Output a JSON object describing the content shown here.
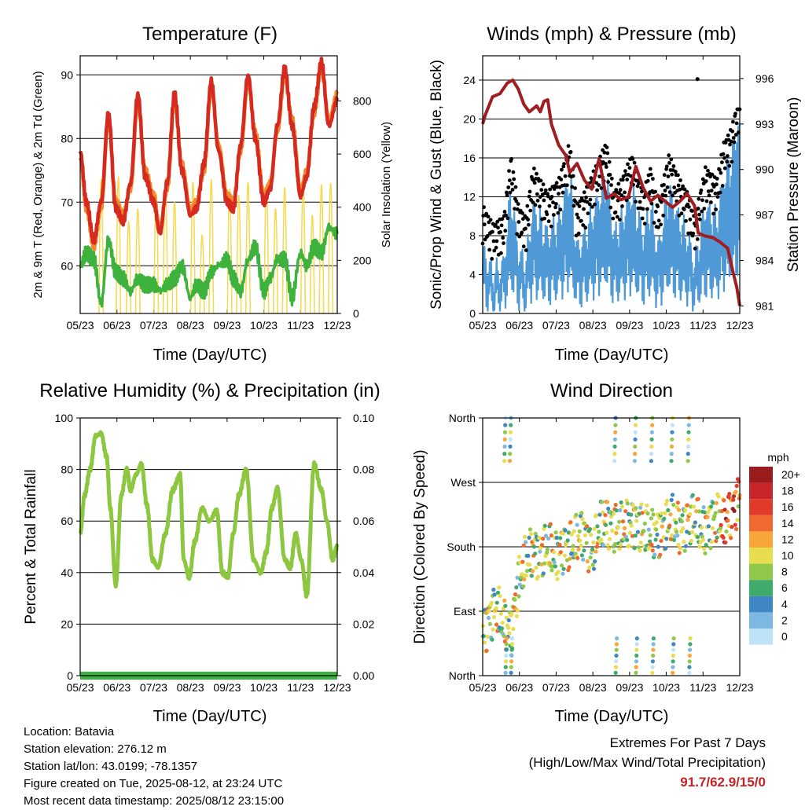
{
  "info": {
    "location": "Location: Batavia",
    "elevation": "Station elevation: 276.12 m",
    "latlon": "Station lat/lon: 43.0199; -78.1357",
    "created": "Figure created on Tue, 2025-08-12, at 23:24 UTC",
    "recent": "Most recent data timestamp: 2025/08/12 23:15:00"
  },
  "extremes": {
    "line1": "Extremes For Past 7 Days",
    "line2": "(High/Low/Max Wind/Total Precipitation)",
    "value": "91.7/62.9/15/0"
  },
  "chart_data": [
    {
      "type": "line",
      "title": "Temperature (F)",
      "xlabel": "Time (Day/UTC)",
      "ylabel": "2m & 9m T (Red, Orange) & 2m Td (Green)",
      "ylabel_right": "Solar Insolation (Yellow)",
      "x_ticks": [
        "05/23",
        "06/23",
        "07/23",
        "08/23",
        "09/23",
        "10/23",
        "11/23",
        "12/23"
      ],
      "y_ticks": [
        60,
        70,
        80,
        90
      ],
      "ylim": [
        52.5,
        93
      ],
      "y2_ticks": [
        0,
        200,
        400,
        600,
        800
      ],
      "y2lim": [
        0,
        970
      ],
      "colors": {
        "t2m": "#d62a20",
        "t9m": "#f08a30",
        "td": "#3db33d",
        "solar": "#f5d94e"
      },
      "series": [
        {
          "key": "t2m",
          "x": [
            5.23,
            5.4,
            5.6,
            5.8,
            6.0,
            6.2,
            6.4,
            6.6,
            6.8,
            7.0,
            7.23,
            7.4,
            7.6,
            7.8,
            8.0,
            8.23,
            8.4,
            8.6,
            8.8,
            9.0,
            9.23,
            9.4,
            9.6,
            9.8,
            10.0,
            10.23,
            10.4,
            10.6,
            10.8,
            11.0,
            11.23,
            11.4,
            11.6,
            11.8,
            12.0,
            12.23
          ],
          "y": [
            78,
            70,
            64,
            70,
            84,
            69,
            67,
            73,
            87,
            74,
            70,
            65,
            73,
            87,
            75,
            68,
            69,
            76,
            89,
            78,
            70,
            69,
            79,
            90,
            80,
            70,
            72,
            82,
            91,
            82,
            71,
            74,
            85,
            92,
            82,
            86
          ]
        },
        {
          "key": "t9m",
          "x": [
            5.23,
            5.4,
            5.6,
            5.8,
            6.0,
            6.2,
            6.4,
            6.6,
            6.8,
            7.0,
            7.23,
            7.4,
            7.6,
            7.8,
            8.0,
            8.23,
            8.4,
            8.6,
            8.8,
            9.0,
            9.23,
            9.4,
            9.6,
            9.8,
            10.0,
            10.23,
            10.4,
            10.6,
            10.8,
            11.0,
            11.23,
            11.4,
            11.6,
            11.8,
            12.0,
            12.23
          ],
          "y": [
            77,
            69,
            63,
            69,
            83,
            70,
            68,
            72,
            86,
            75,
            71,
            66,
            72,
            86,
            76,
            69,
            70,
            75,
            88,
            79,
            71,
            70,
            78,
            89,
            81,
            71,
            73,
            81,
            90,
            83,
            72,
            75,
            84,
            91,
            83,
            87
          ]
        },
        {
          "key": "td",
          "x": [
            5.23,
            5.4,
            5.6,
            5.8,
            6.0,
            6.2,
            6.4,
            6.6,
            6.8,
            7.0,
            7.23,
            7.4,
            7.6,
            7.8,
            8.0,
            8.23,
            8.4,
            8.6,
            8.8,
            9.0,
            9.23,
            9.4,
            9.6,
            9.8,
            10.0,
            10.23,
            10.4,
            10.6,
            10.8,
            11.0,
            11.23,
            11.4,
            11.6,
            11.8,
            12.0,
            12.23
          ],
          "y": [
            60,
            62,
            61,
            54,
            64,
            59,
            58,
            56,
            58,
            57,
            57,
            56,
            57,
            58,
            60,
            55,
            57,
            56,
            59,
            60,
            61,
            58,
            56,
            61,
            63,
            56,
            58,
            61,
            61,
            55,
            62,
            60,
            63,
            62,
            66,
            65
          ]
        },
        {
          "key": "solar",
          "type": "peaks",
          "peak_x": [
            5.8,
            6.27,
            6.55,
            6.8,
            7.3,
            7.55,
            7.8,
            8.3,
            8.55,
            8.8,
            9.3,
            9.55,
            9.8,
            10.3,
            10.55,
            10.8,
            11.3,
            11.55,
            11.8,
            12.05
          ],
          "peak_y": [
            920,
            940,
            600,
            700,
            820,
            930,
            750,
            900,
            500,
            920,
            850,
            800,
            900,
            880,
            700,
            860,
            900,
            650,
            880,
            890
          ]
        }
      ]
    },
    {
      "type": "scatter",
      "title": "Winds (mph) & Pressure (mb)",
      "xlabel": "Time (Day/UTC)",
      "ylabel": "Sonic/Prop Wind & Gust (Blue, Black)",
      "ylabel_right": "Station Pressure (Maroon)",
      "x_ticks": [
        "05/23",
        "06/23",
        "07/23",
        "08/23",
        "09/23",
        "10/23",
        "11/23",
        "12/23"
      ],
      "y_ticks": [
        0,
        4,
        8,
        12,
        16,
        20,
        24
      ],
      "ylim": [
        0,
        26.5
      ],
      "y2_ticks": [
        981,
        984,
        987,
        990,
        993,
        996
      ],
      "y2lim": [
        980.5,
        997.5
      ],
      "colors": {
        "wind": "#4f9ad6",
        "gust": "#000000",
        "pressure": "#a01d21"
      },
      "pressure": {
        "x": [
          5.23,
          5.3,
          5.5,
          5.7,
          5.9,
          6.05,
          6.2,
          6.35,
          6.5,
          6.7,
          6.8,
          6.9,
          7.0,
          7.1,
          7.3,
          7.5,
          7.6,
          7.8,
          8.0,
          8.2,
          8.4,
          8.6,
          8.8,
          9.0,
          9.2,
          9.4,
          9.6,
          9.8,
          10.0,
          10.2,
          10.4,
          10.6,
          10.8,
          11.0,
          11.1,
          11.3,
          11.5,
          11.7,
          11.9,
          12.05,
          12.15,
          12.23
        ],
        "y": [
          993,
          993.6,
          994.8,
          995,
          995.7,
          995.9,
          995.3,
          994.3,
          993.8,
          994.2,
          993.8,
          994.5,
          994.6,
          993,
          991.6,
          990.9,
          989.8,
          990.4,
          989.3,
          988.7,
          990.7,
          988.1,
          988.4,
          988,
          988.2,
          990.2,
          988.8,
          987.9,
          988.3,
          987.9,
          987.5,
          987.9,
          988.4,
          987.6,
          985.8,
          985.6,
          985.5,
          985.2,
          984.8,
          983.2,
          982.2,
          981
        ]
      },
      "wind_mean": {
        "x": [
          5.23,
          5.5,
          5.8,
          6.0,
          6.2,
          6.4,
          6.6,
          6.8,
          7.0,
          7.3,
          7.6,
          7.8,
          8.0,
          8.3,
          8.6,
          8.8,
          9.0,
          9.3,
          9.6,
          9.8,
          10.0,
          10.3,
          10.6,
          10.8,
          11.0,
          11.3,
          11.6,
          11.8,
          12.0,
          12.23
        ],
        "y": [
          4,
          2.5,
          3,
          8,
          4,
          3,
          7,
          6,
          5,
          6,
          9,
          4,
          5,
          7,
          9,
          5,
          6,
          8,
          5,
          7,
          4,
          8,
          6,
          5,
          3,
          7,
          6,
          9,
          10,
          13
        ]
      },
      "gust_outlier": {
        "x": 11.08,
        "y": 24.1
      }
    },
    {
      "type": "line",
      "title": "Relative Humidity (%) & Precipitation (in)",
      "xlabel": "Time (Day/UTC)",
      "ylabel": "Percent & Total Rainfall",
      "x_ticks": [
        "05/23",
        "06/23",
        "07/23",
        "08/23",
        "09/23",
        "10/23",
        "11/23",
        "12/23"
      ],
      "y_ticks": [
        0,
        20,
        40,
        60,
        80,
        100
      ],
      "ylim": [
        0,
        100
      ],
      "y2_ticks": [
        "0.00",
        "0.02",
        "0.04",
        "0.06",
        "0.08",
        "0.10"
      ],
      "y2lim": [
        0,
        0.1
      ],
      "colors": {
        "rh": "#8dc63f",
        "precip": "#3cb043"
      },
      "series": [
        {
          "key": "rh",
          "x": [
            5.23,
            5.35,
            5.5,
            5.65,
            5.8,
            5.95,
            6.05,
            6.2,
            6.35,
            6.5,
            6.6,
            6.75,
            6.9,
            7.05,
            7.2,
            7.35,
            7.55,
            7.75,
            7.95,
            8.05,
            8.2,
            8.35,
            8.55,
            8.75,
            8.95,
            9.1,
            9.25,
            9.4,
            9.55,
            9.75,
            9.95,
            10.15,
            10.3,
            10.45,
            10.6,
            10.8,
            10.95,
            11.1,
            11.25,
            11.4,
            11.6,
            11.8,
            11.95,
            12.1,
            12.23
          ],
          "y": [
            55,
            70,
            80,
            93,
            94,
            85,
            65,
            35,
            70,
            80,
            72,
            78,
            82,
            66,
            45,
            42,
            55,
            72,
            78,
            45,
            38,
            52,
            65,
            60,
            64,
            40,
            38,
            55,
            70,
            80,
            45,
            40,
            48,
            65,
            73,
            45,
            42,
            55,
            45,
            31,
            82,
            72,
            60,
            45,
            50
          ]
        },
        {
          "key": "precip",
          "x": [
            5.23,
            12.23
          ],
          "y": [
            0,
            0
          ]
        }
      ]
    },
    {
      "type": "scatter",
      "title": "Wind Direction",
      "xlabel": "Time (Day/UTC)",
      "ylabel": "Direction (Colored By Speed)",
      "x_ticks": [
        "05/23",
        "06/23",
        "07/23",
        "08/23",
        "09/23",
        "10/23",
        "11/23",
        "12/23"
      ],
      "y_ticks": [
        "North",
        "East",
        "South",
        "West",
        "North"
      ],
      "ylim": [
        0,
        360
      ],
      "legend": {
        "title": "mph",
        "labels": [
          "20+",
          "18",
          "16",
          "14",
          "12",
          "10",
          "8",
          "6",
          "4",
          "2",
          "0"
        ],
        "colors": [
          "#9b1c1f",
          "#c8252a",
          "#e23a2a",
          "#f0692e",
          "#f8a53a",
          "#e7dd4e",
          "#8fc84a",
          "#3fab6a",
          "#3f86c4",
          "#7db8e2",
          "#bfe3f6"
        ]
      },
      "trend": {
        "x": [
          5.23,
          5.4,
          5.6,
          5.8,
          6.0,
          6.2,
          6.4,
          6.6,
          6.8,
          7.0,
          7.2,
          7.4,
          7.6,
          7.8,
          8.0,
          8.2,
          8.4,
          8.6,
          8.8,
          9.0,
          9.2,
          9.4,
          9.6,
          9.8,
          10.0,
          10.2,
          10.4,
          10.6,
          10.8,
          11.0,
          11.2,
          11.4,
          11.6,
          11.8,
          12.0,
          12.23
        ],
        "y": [
          55,
          80,
          95,
          70,
          60,
          130,
          160,
          175,
          170,
          180,
          165,
          180,
          180,
          190,
          200,
          170,
          205,
          215,
          210,
          205,
          210,
          215,
          205,
          195,
          200,
          210,
          215,
          205,
          215,
          220,
          200,
          215,
          220,
          210,
          230,
          250
        ]
      },
      "north_spikes": [
        5.85,
        6.0,
        8.85,
        9.4,
        9.85,
        10.4,
        10.85
      ]
    }
  ]
}
